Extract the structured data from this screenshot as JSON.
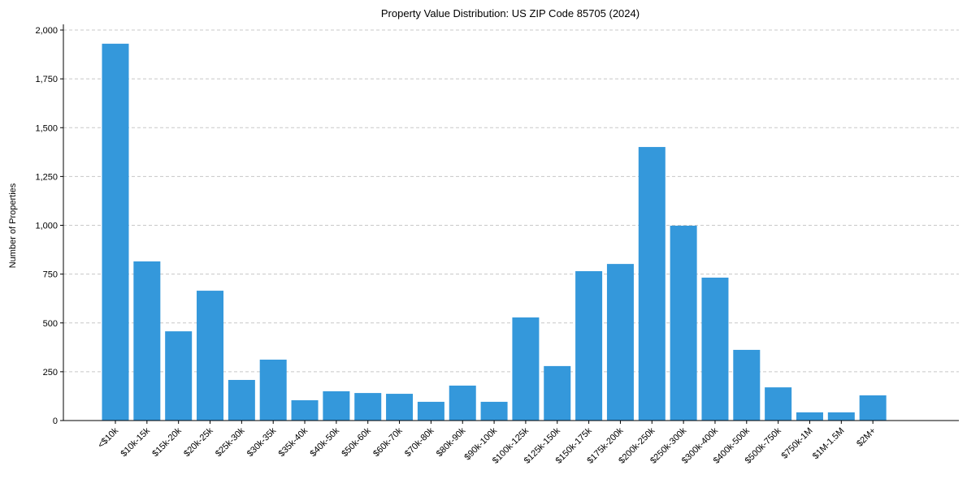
{
  "chart_data": {
    "type": "bar",
    "title": "Property Value Distribution: US ZIP Code 85705 (2024)",
    "xlabel": "",
    "ylabel": "Number of Properties",
    "ylim": [
      0,
      2000
    ],
    "yticks": [
      0,
      250,
      500,
      750,
      1000,
      1250,
      1500,
      1750,
      2000
    ],
    "ytick_labels": [
      "0",
      "250",
      "500",
      "750",
      "1,000",
      "1,250",
      "1,500",
      "1,750",
      "2,000"
    ],
    "grid": "horizontal dashed",
    "bar_color": "#3498db",
    "categories": [
      "<$10k",
      "$10k-15k",
      "$15k-20k",
      "$20k-25k",
      "$25k-30k",
      "$30k-35k",
      "$35k-40k",
      "$40k-50k",
      "$50k-60k",
      "$60k-70k",
      "$70k-80k",
      "$80k-90k",
      "$90k-100k",
      "$100k-125k",
      "$125k-150k",
      "$150k-175k",
      "$175k-200k",
      "$200k-250k",
      "$250k-300k",
      "$300k-400k",
      "$400k-500k",
      "$500k-750k",
      "$750k-1M",
      "$1M-1.5M",
      "$2M+"
    ],
    "values": [
      1930,
      815,
      457,
      665,
      208,
      312,
      104,
      150,
      141,
      137,
      96,
      179,
      96,
      528,
      279,
      765,
      802,
      1401,
      998,
      732,
      362,
      170,
      42,
      42,
      129
    ]
  }
}
